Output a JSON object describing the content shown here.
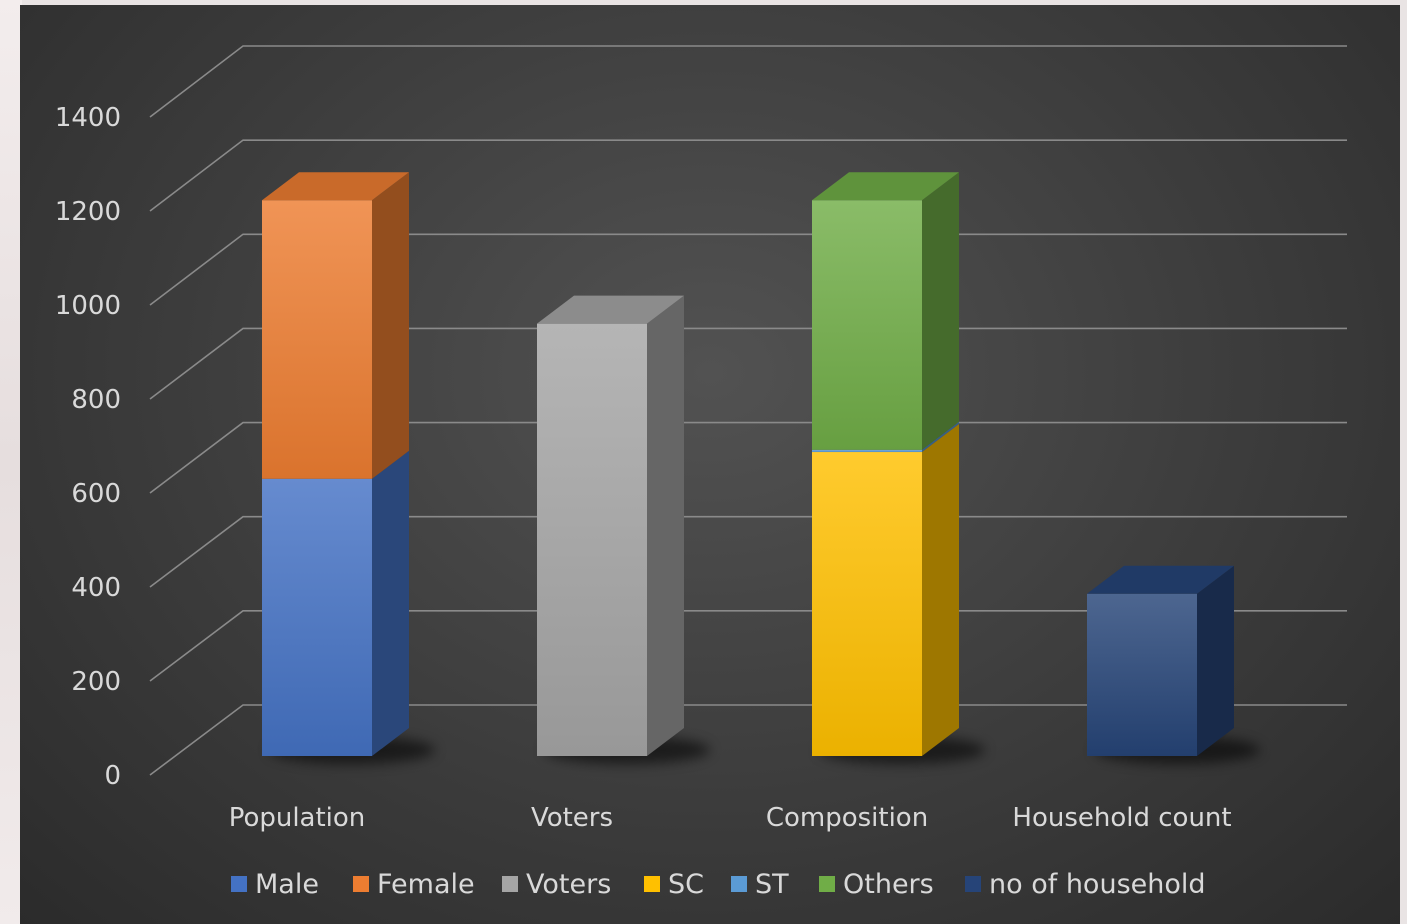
{
  "chart_data": {
    "type": "bar",
    "stacked": true,
    "three_d": true,
    "categories": [
      "Population",
      "Voters",
      "Composition",
      "Household count"
    ],
    "series": [
      {
        "name": "Male",
        "color": "#4472c4",
        "values": [
          622,
          0,
          0,
          0
        ]
      },
      {
        "name": "Female",
        "color": "#ed7d31",
        "values": [
          625,
          0,
          0,
          0
        ]
      },
      {
        "name": "Voters",
        "color": "#a5a5a5",
        "values": [
          0,
          970,
          0,
          0
        ]
      },
      {
        "name": "SC",
        "color": "#ffc000",
        "values": [
          0,
          0,
          682,
          0
        ]
      },
      {
        "name": "ST",
        "color": "#5b9bd5",
        "values": [
          0,
          0,
          5,
          0
        ]
      },
      {
        "name": "Others",
        "color": "#70ad47",
        "values": [
          0,
          0,
          560,
          0
        ]
      },
      {
        "name": "no of household",
        "color": "#264478",
        "values": [
          0,
          0,
          0,
          364
        ]
      }
    ],
    "yticks": [
      "0",
      "200",
      "400",
      "600",
      "800",
      "1000",
      "1200",
      "1400"
    ],
    "ylim": [
      0,
      1400
    ],
    "grid": true,
    "legend_position": "bottom",
    "title": "",
    "xlabel": "",
    "ylabel": ""
  }
}
